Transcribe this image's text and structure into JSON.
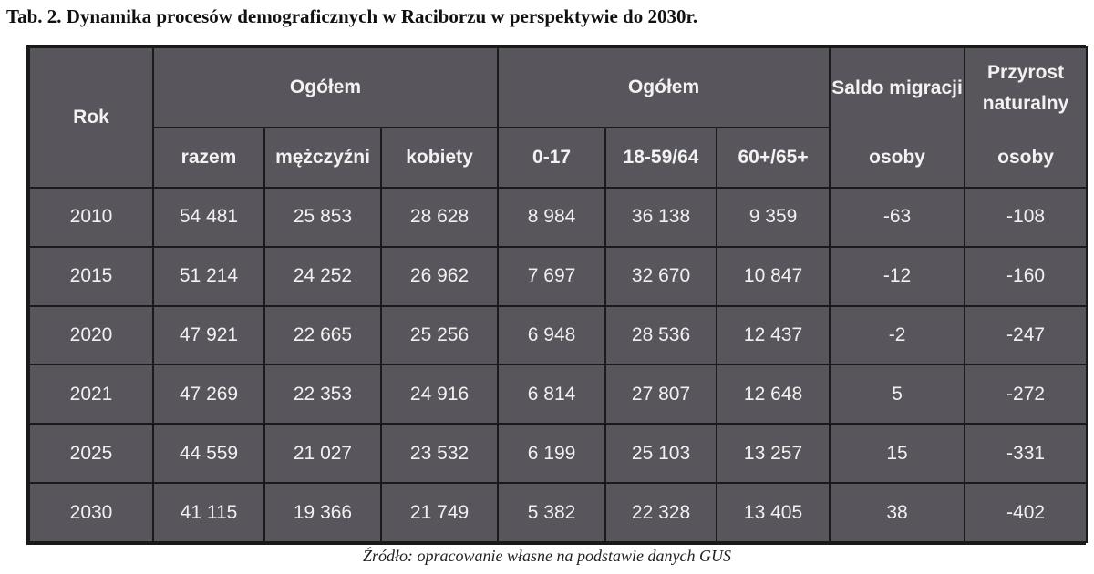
{
  "caption": "Tab. 2. Dynamika procesów demograficznych w Raciborzu w perspektywie do 2030r.",
  "header": {
    "rok": "Rok",
    "group1": "Ogółem",
    "group2": "Ogółem",
    "saldo_top": "Saldo migracji",
    "saldo_bottom": "osoby",
    "przyrost_top": "Przyrost naturalny",
    "przyrost_bottom": "osoby",
    "sub": [
      "razem",
      "mężczyźni",
      "kobiety",
      "0-17",
      "18-59/64",
      "60+/65+"
    ]
  },
  "rows": [
    [
      "2010",
      "54 481",
      "25 853",
      "28 628",
      "8 984",
      "36 138",
      "9 359",
      "-63",
      "-108"
    ],
    [
      "2015",
      "51 214",
      "24 252",
      "26 962",
      "7 697",
      "32 670",
      "10 847",
      "-12",
      "-160"
    ],
    [
      "2020",
      "47 921",
      "22 665",
      "25 256",
      "6 948",
      "28 536",
      "12 437",
      "-2",
      "-247"
    ],
    [
      "2021",
      "47 269",
      "22 353",
      "24 916",
      "6 814",
      "27 807",
      "12 648",
      "5",
      "-272"
    ],
    [
      "2025",
      "44 559",
      "21 027",
      "23 532",
      "6 199",
      "25 103",
      "13 257",
      "15",
      "-331"
    ],
    [
      "2030",
      "41 115",
      "19 366",
      "21 749",
      "5 382",
      "22 328",
      "13 405",
      "38",
      "-402"
    ]
  ],
  "source": "Źródło: opracowanie własne na podstawie danych GUS"
}
